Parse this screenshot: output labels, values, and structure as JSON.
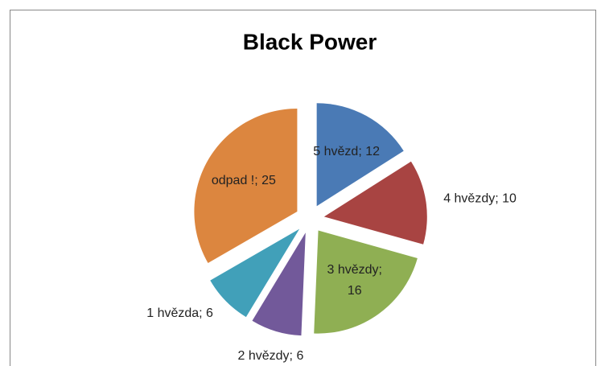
{
  "chart_data": {
    "type": "pie",
    "title": "Black Power",
    "categories": [
      "5 hvězd",
      "4 hvězdy",
      "3 hvězdy",
      "2 hvězdy",
      "1 hvězda",
      "odpad !"
    ],
    "values": [
      12,
      10,
      16,
      6,
      6,
      25
    ],
    "value_labels": [
      "5 hvězd; 12",
      "4 hvězdy; 10",
      "3 hvězdy; 16",
      "2 hvězdy; 6",
      "1 hvězda; 6",
      "odpad !; 25"
    ],
    "colors": [
      "#4a7ab5",
      "#a84442",
      "#8faf53",
      "#72599a",
      "#41a0b9",
      "#dc863f"
    ],
    "exploded": true
  }
}
